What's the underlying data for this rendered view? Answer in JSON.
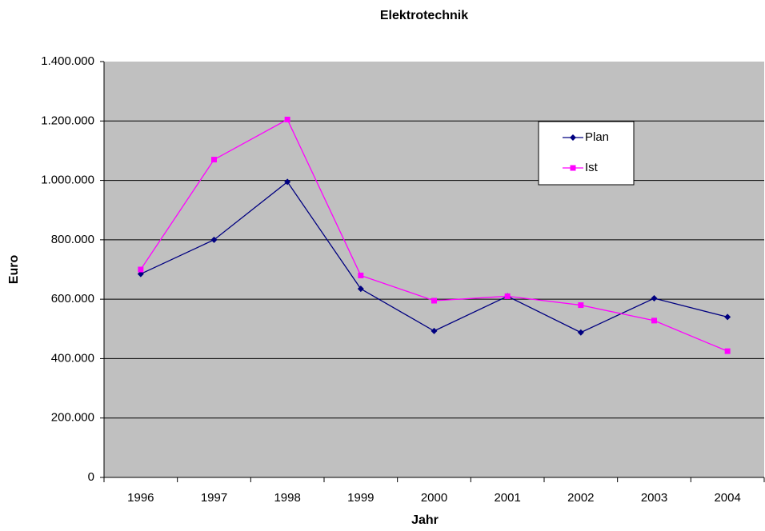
{
  "chart_data": {
    "type": "line",
    "title": "Elektrotechnik",
    "x_label": "Jahr",
    "y_label": "Euro",
    "categories": [
      "1996",
      "1997",
      "1998",
      "1999",
      "2000",
      "2001",
      "2002",
      "2003",
      "2004"
    ],
    "series": [
      {
        "name": "Plan",
        "color": "#000080",
        "marker": "diamond",
        "values": [
          685000,
          800000,
          995000,
          635000,
          493000,
          610000,
          488000,
          603000,
          540000
        ]
      },
      {
        "name": "Ist",
        "color": "#ff00ff",
        "marker": "square",
        "values": [
          700000,
          1070000,
          1205000,
          680000,
          595000,
          610000,
          580000,
          528000,
          425000
        ]
      }
    ],
    "ylim": [
      0,
      1400000
    ],
    "yticks": [
      0,
      {
        "value": 200000,
        "label": "200.000"
      },
      {
        "value": 400000,
        "label": "400.000"
      },
      {
        "value": 600000,
        "label": "600.000"
      },
      {
        "value": 800000,
        "label": "800.000"
      },
      {
        "value": 1000000,
        "label": "1.000.000"
      },
      {
        "value": 1200000,
        "label": "1.200.000"
      },
      {
        "value": 1400000,
        "label": "1.400.000"
      }
    ],
    "grid": true,
    "plot_background": "#c0c0c0",
    "legend": "top-right"
  }
}
